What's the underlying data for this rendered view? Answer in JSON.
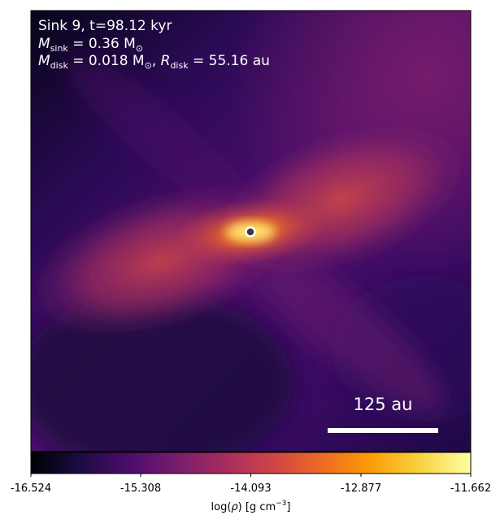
{
  "panel": {
    "title": "Sink 9, t=98.12 kyr",
    "m_sink_label": "M",
    "m_sink_sub": "sink",
    "m_sink_value": " = 0.36 M",
    "m_sink_unit_sub": "⊙",
    "m_disk_label": "M",
    "m_disk_sub": "disk",
    "m_disk_value": " = 0.018 M",
    "m_disk_unit_sub": "⊙",
    "r_disk_sep": ", ",
    "r_disk_label": "R",
    "r_disk_sub": "disk",
    "r_disk_value": " = 55.16 au"
  },
  "scale_bar": {
    "label": "125 au"
  },
  "colorbar": {
    "ticks": [
      "-16.524",
      "-15.308",
      "-14.093",
      "-12.877",
      "-11.662"
    ],
    "label_prefix": "log(",
    "label_rho": "ρ",
    "label_suffix": ") [g cm",
    "label_exp": "−3",
    "label_end": "]",
    "colormap": "inferno-like"
  },
  "colors": {
    "cmap": [
      "#000004",
      "#1b0c41",
      "#4a0c6b",
      "#781c6d",
      "#a52c60",
      "#cf4446",
      "#ed6925",
      "#fb9b06",
      "#f7d13d",
      "#fcffa4"
    ],
    "background_edge": "#1a0a3c",
    "sink_marker_edge": "#ffffff",
    "sink_marker_fill": "#3a3a3a"
  }
}
